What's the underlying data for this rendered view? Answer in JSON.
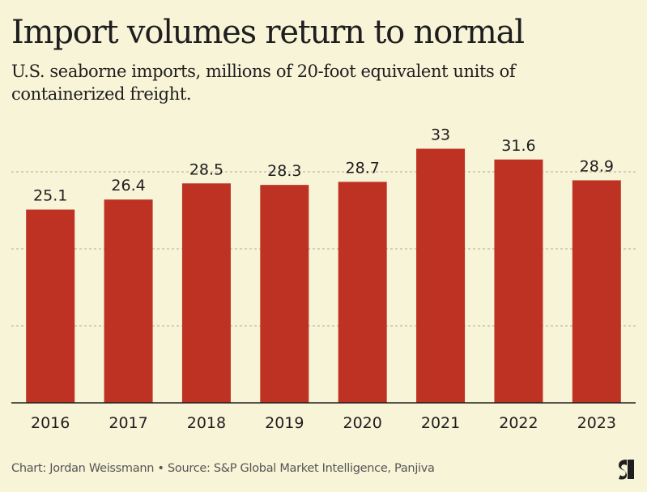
{
  "header": {
    "title": "Import volumes return to normal",
    "subtitle": "U.S. seaborne imports, millions of 20-foot equivalent units of containerized freight."
  },
  "footer": {
    "credit": "Chart: Jordan Weissmann • Source: S&P Global Market Intelligence, Panjiva",
    "logo_icon": "substack-s-logo-icon"
  },
  "colors": {
    "background": "#f8f4d8",
    "bar": "#bd3222",
    "text": "#1e1e1e",
    "grid": "#b0ad9c"
  },
  "chart_data": {
    "type": "bar",
    "title": "Import volumes return to normal",
    "subtitle": "U.S. seaborne imports, millions of 20-foot equivalent units of containerized freight.",
    "xlabel": "",
    "ylabel": "",
    "categories": [
      "2016",
      "2017",
      "2018",
      "2019",
      "2020",
      "2021",
      "2022",
      "2023"
    ],
    "values": [
      25.1,
      26.4,
      28.5,
      28.3,
      28.7,
      33,
      31.6,
      28.9
    ],
    "data_labels": [
      "25.1",
      "26.4",
      "28.5",
      "28.3",
      "28.7",
      "33",
      "31.6",
      "28.9"
    ],
    "ylim": [
      0,
      34
    ],
    "gridlines": [
      10,
      20,
      30
    ],
    "grid": true,
    "legend": "none"
  }
}
